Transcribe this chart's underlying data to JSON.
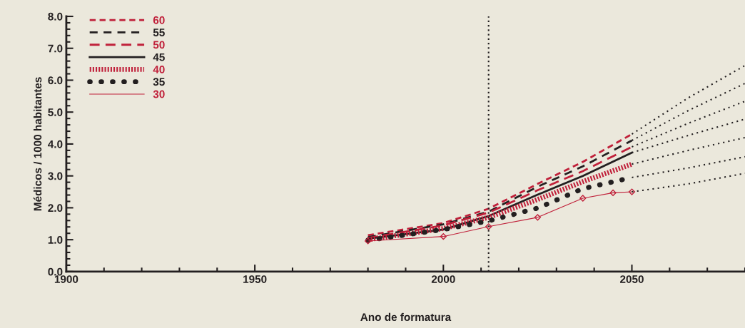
{
  "chart_data": {
    "type": "line",
    "xlabel": "Ano de formatura",
    "ylabel": "Médicos / 1000 habitantes",
    "xlim": [
      1900,
      2080
    ],
    "xticks": [
      1900,
      1950,
      2000,
      2050
    ],
    "ylim": [
      0,
      8
    ],
    "yticks": [
      {
        "value": 0,
        "label": "0.0"
      },
      {
        "value": 1,
        "label": "1.0"
      },
      {
        "value": 2,
        "label": "2.0"
      },
      {
        "value": 3,
        "label": "3.0"
      },
      {
        "value": 4,
        "label": "4.0"
      },
      {
        "value": 5,
        "label": "5.0"
      },
      {
        "value": 6,
        "label": "6.0"
      },
      {
        "value": 7,
        "label": "7.0"
      },
      {
        "value": 8,
        "label": "8.0"
      }
    ],
    "grid": false,
    "legend": "top left",
    "marker": "none",
    "ref_lines": [
      {
        "axis": "x",
        "value": 2012,
        "color": "#231f20",
        "line_style": "dotted"
      }
    ],
    "series": [
      {
        "name": "60",
        "color": "#c0203a",
        "line_style": "dashed",
        "x": [
          1980,
          2000,
          2012,
          2025,
          2037,
          2050
        ],
        "values": [
          1.14,
          1.52,
          1.97,
          2.75,
          3.44,
          4.31
        ]
      },
      {
        "name": "55",
        "color": "#231f20",
        "line_style": "dashed",
        "x": [
          1980,
          2000,
          2012,
          2025,
          2037,
          2050
        ],
        "values": [
          1.08,
          1.48,
          1.88,
          2.66,
          3.3,
          4.11
        ]
      },
      {
        "name": "50",
        "color": "#c0203a",
        "line_style": "dashed",
        "x": [
          1980,
          2000,
          2012,
          2025,
          2037,
          2050
        ],
        "values": [
          1.05,
          1.45,
          1.85,
          2.55,
          3.15,
          3.91
        ]
      },
      {
        "name": "45",
        "color": "#231f20",
        "line_style": "solid",
        "x": [
          1980,
          2000,
          2012,
          2025,
          2037,
          2050
        ],
        "values": [
          1.03,
          1.32,
          1.74,
          2.41,
          3.0,
          3.73
        ]
      },
      {
        "name": "40",
        "color": "#c0203a",
        "line_style": "dotted",
        "x": [
          1980,
          2000,
          2012,
          2025,
          2037,
          2050
        ],
        "values": [
          1.0,
          1.35,
          1.7,
          2.26,
          2.82,
          3.37
        ]
      },
      {
        "name": "35",
        "color": "#231f20",
        "line_style": "dotted",
        "x": [
          1980,
          2000,
          2012,
          2025,
          2037,
          2050
        ],
        "values": [
          0.98,
          1.32,
          1.59,
          1.99,
          2.6,
          2.95
        ]
      },
      {
        "name": "30",
        "color": "#c0203a",
        "line_style": "solid",
        "marker": "diamond",
        "x": [
          1980,
          2000,
          2012,
          2025,
          2037,
          2045,
          2050
        ],
        "values": [
          0.96,
          1.1,
          1.41,
          1.7,
          2.3,
          2.47,
          2.5
        ]
      },
      {
        "color": "#231f20",
        "line_style": "dotted",
        "x": [
          2050,
          2065,
          2080
        ],
        "values": [
          4.31,
          5.45,
          6.46
        ]
      },
      {
        "color": "#231f20",
        "line_style": "dotted",
        "x": [
          2050,
          2065,
          2080
        ],
        "values": [
          4.11,
          5.05,
          5.9
        ]
      },
      {
        "color": "#231f20",
        "line_style": "dotted",
        "x": [
          2050,
          2065,
          2080
        ],
        "values": [
          3.91,
          4.65,
          5.34
        ]
      },
      {
        "color": "#231f20",
        "line_style": "dotted",
        "x": [
          2050,
          2065,
          2080
        ],
        "values": [
          3.73,
          4.27,
          4.78
        ]
      },
      {
        "color": "#231f20",
        "line_style": "dotted",
        "x": [
          2050,
          2065,
          2080
        ],
        "values": [
          3.37,
          3.8,
          4.2
        ]
      },
      {
        "color": "#231f20",
        "line_style": "dotted",
        "x": [
          2050,
          2065,
          2080
        ],
        "values": [
          2.95,
          3.25,
          3.6
        ]
      },
      {
        "color": "#231f20",
        "line_style": "dotted",
        "x": [
          2050,
          2065,
          2080
        ],
        "values": [
          2.5,
          2.75,
          3.08
        ]
      }
    ]
  }
}
